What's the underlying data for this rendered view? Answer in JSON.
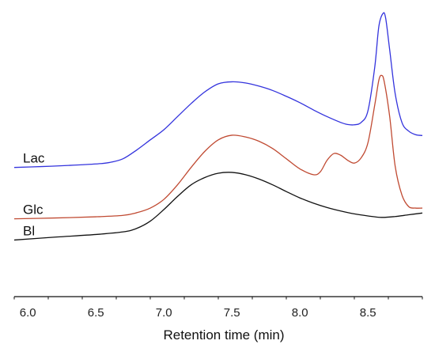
{
  "chart_data": {
    "type": "line",
    "title": "",
    "xlabel": "Retention time (min)",
    "ylabel": "",
    "xlim": [
      5.9,
      8.9
    ],
    "ylim": [
      0,
      1
    ],
    "x_ticks": [
      6.0,
      6.5,
      7.0,
      7.5,
      8.0,
      8.5
    ],
    "x_tick_labels": [
      "6.0",
      "6.5",
      "7.0",
      "7.5",
      "8.0",
      "8.5"
    ],
    "grid": false,
    "legend": "none",
    "series": [
      {
        "name": "Lac",
        "color": "#3333dd",
        "points": [
          [
            5.9,
            0.445
          ],
          [
            6.1,
            0.448
          ],
          [
            6.3,
            0.452
          ],
          [
            6.5,
            0.457
          ],
          [
            6.6,
            0.462
          ],
          [
            6.7,
            0.475
          ],
          [
            6.8,
            0.505
          ],
          [
            6.9,
            0.54
          ],
          [
            7.0,
            0.575
          ],
          [
            7.1,
            0.62
          ],
          [
            7.2,
            0.665
          ],
          [
            7.3,
            0.705
          ],
          [
            7.4,
            0.733
          ],
          [
            7.5,
            0.74
          ],
          [
            7.6,
            0.736
          ],
          [
            7.7,
            0.725
          ],
          [
            7.8,
            0.71
          ],
          [
            7.9,
            0.69
          ],
          [
            8.0,
            0.668
          ],
          [
            8.1,
            0.643
          ],
          [
            8.2,
            0.62
          ],
          [
            8.3,
            0.6
          ],
          [
            8.35,
            0.593
          ],
          [
            8.4,
            0.592
          ],
          [
            8.45,
            0.6
          ],
          [
            8.5,
            0.64
          ],
          [
            8.55,
            0.79
          ],
          [
            8.58,
            0.93
          ],
          [
            8.61,
            0.975
          ],
          [
            8.63,
            0.96
          ],
          [
            8.66,
            0.85
          ],
          [
            8.7,
            0.7
          ],
          [
            8.75,
            0.6
          ],
          [
            8.8,
            0.57
          ],
          [
            8.85,
            0.558
          ],
          [
            8.9,
            0.555
          ]
        ]
      },
      {
        "name": "Glc",
        "color": "#c04a32",
        "points": [
          [
            5.9,
            0.268
          ],
          [
            6.2,
            0.271
          ],
          [
            6.5,
            0.275
          ],
          [
            6.7,
            0.28
          ],
          [
            6.8,
            0.289
          ],
          [
            6.9,
            0.305
          ],
          [
            7.0,
            0.335
          ],
          [
            7.1,
            0.385
          ],
          [
            7.2,
            0.445
          ],
          [
            7.3,
            0.5
          ],
          [
            7.4,
            0.54
          ],
          [
            7.5,
            0.556
          ],
          [
            7.6,
            0.55
          ],
          [
            7.7,
            0.535
          ],
          [
            7.8,
            0.51
          ],
          [
            7.9,
            0.475
          ],
          [
            8.0,
            0.44
          ],
          [
            8.1,
            0.42
          ],
          [
            8.15,
            0.43
          ],
          [
            8.2,
            0.47
          ],
          [
            8.25,
            0.493
          ],
          [
            8.3,
            0.487
          ],
          [
            8.35,
            0.47
          ],
          [
            8.4,
            0.46
          ],
          [
            8.45,
            0.478
          ],
          [
            8.5,
            0.53
          ],
          [
            8.55,
            0.66
          ],
          [
            8.58,
            0.745
          ],
          [
            8.6,
            0.762
          ],
          [
            8.62,
            0.74
          ],
          [
            8.66,
            0.62
          ],
          [
            8.7,
            0.45
          ],
          [
            8.75,
            0.35
          ],
          [
            8.8,
            0.31
          ],
          [
            8.85,
            0.305
          ],
          [
            8.9,
            0.305
          ]
        ]
      },
      {
        "name": "Bl",
        "color": "#111111",
        "points": [
          [
            5.9,
            0.195
          ],
          [
            6.2,
            0.205
          ],
          [
            6.5,
            0.214
          ],
          [
            6.7,
            0.223
          ],
          [
            6.8,
            0.235
          ],
          [
            6.9,
            0.26
          ],
          [
            7.0,
            0.3
          ],
          [
            7.1,
            0.345
          ],
          [
            7.2,
            0.385
          ],
          [
            7.3,
            0.41
          ],
          [
            7.4,
            0.425
          ],
          [
            7.5,
            0.428
          ],
          [
            7.6,
            0.42
          ],
          [
            7.7,
            0.405
          ],
          [
            7.8,
            0.385
          ],
          [
            7.9,
            0.362
          ],
          [
            8.0,
            0.34
          ],
          [
            8.1,
            0.322
          ],
          [
            8.2,
            0.307
          ],
          [
            8.3,
            0.295
          ],
          [
            8.4,
            0.285
          ],
          [
            8.5,
            0.278
          ],
          [
            8.6,
            0.273
          ],
          [
            8.7,
            0.276
          ],
          [
            8.8,
            0.282
          ],
          [
            8.9,
            0.288
          ]
        ]
      }
    ]
  }
}
